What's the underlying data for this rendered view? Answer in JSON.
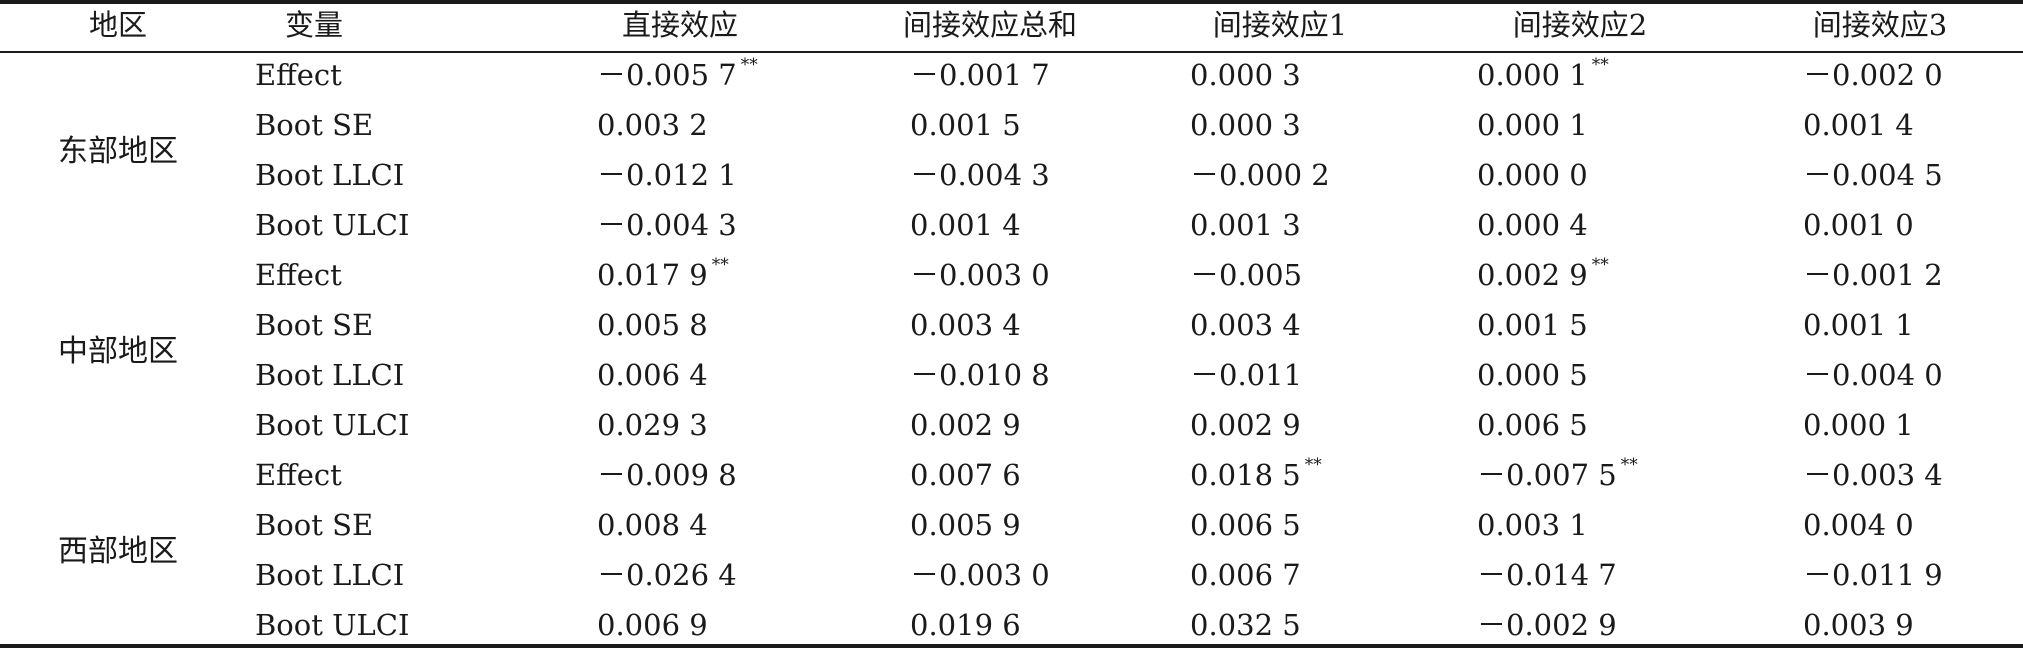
{
  "table": {
    "headers": [
      "地区",
      "变量",
      "直接效应",
      "间接效应总和",
      "间接效应1",
      "间接效应2",
      "间接效应3"
    ],
    "groups": [
      {
        "region": "东部地区",
        "rows": [
          {
            "var": "Effect",
            "vals": [
              "－0.005 7",
              "－0.001 7",
              "0.000 3",
              "0.000 1",
              "－0.002 0"
            ],
            "sig": [
              "**",
              "",
              "",
              "**",
              ""
            ]
          },
          {
            "var": "Boot SE",
            "vals": [
              "0.003 2",
              "0.001 5",
              "0.000 3",
              "0.000 1",
              "0.001 4"
            ],
            "sig": [
              "",
              "",
              "",
              "",
              ""
            ]
          },
          {
            "var": "Boot LLCI",
            "vals": [
              "－0.012 1",
              "－0.004 3",
              "－0.000 2",
              "0.000 0",
              "－0.004 5"
            ],
            "sig": [
              "",
              "",
              "",
              "",
              ""
            ]
          },
          {
            "var": "Boot ULCI",
            "vals": [
              "－0.004 3",
              "0.001 4",
              "0.001 3",
              "0.000 4",
              "0.001 0"
            ],
            "sig": [
              "",
              "",
              "",
              "",
              ""
            ]
          }
        ]
      },
      {
        "region": "中部地区",
        "rows": [
          {
            "var": "Effect",
            "vals": [
              "0.017 9",
              "－0.003 0",
              "－0.005",
              "0.002 9",
              "－0.001 2"
            ],
            "sig": [
              "**",
              "",
              "",
              "**",
              ""
            ]
          },
          {
            "var": "Boot SE",
            "vals": [
              "0.005 8",
              "0.003 4",
              "0.003 4",
              "0.001 5",
              "0.001 1"
            ],
            "sig": [
              "",
              "",
              "",
              "",
              ""
            ]
          },
          {
            "var": "Boot LLCI",
            "vals": [
              "0.006 4",
              "－0.010 8",
              "－0.011",
              "0.000 5",
              "－0.004 0"
            ],
            "sig": [
              "",
              "",
              "",
              "",
              ""
            ]
          },
          {
            "var": "Boot ULCI",
            "vals": [
              "0.029 3",
              "0.002 9",
              "0.002 9",
              "0.006 5",
              "0.000 1"
            ],
            "sig": [
              "",
              "",
              "",
              "",
              ""
            ]
          }
        ]
      },
      {
        "region": "西部地区",
        "rows": [
          {
            "var": "Effect",
            "vals": [
              "－0.009 8",
              "0.007 6",
              "0.018 5",
              "－0.007 5",
              "－0.003 4"
            ],
            "sig": [
              "",
              "",
              "**",
              "**",
              ""
            ]
          },
          {
            "var": "Boot SE",
            "vals": [
              "0.008 4",
              "0.005 9",
              "0.006 5",
              "0.003 1",
              "0.004 0"
            ],
            "sig": [
              "",
              "",
              "",
              "",
              ""
            ]
          },
          {
            "var": "Boot LLCI",
            "vals": [
              "－0.026 4",
              "－0.003 0",
              "0.006 7",
              "－0.014 7",
              "－0.011 9"
            ],
            "sig": [
              "",
              "",
              "",
              "",
              ""
            ]
          },
          {
            "var": "Boot ULCI",
            "vals": [
              "0.006 9",
              "0.019 6",
              "0.032 5",
              "－0.002 9",
              "0.003 9"
            ],
            "sig": [
              "",
              "",
              "",
              "",
              ""
            ]
          }
        ]
      }
    ]
  }
}
